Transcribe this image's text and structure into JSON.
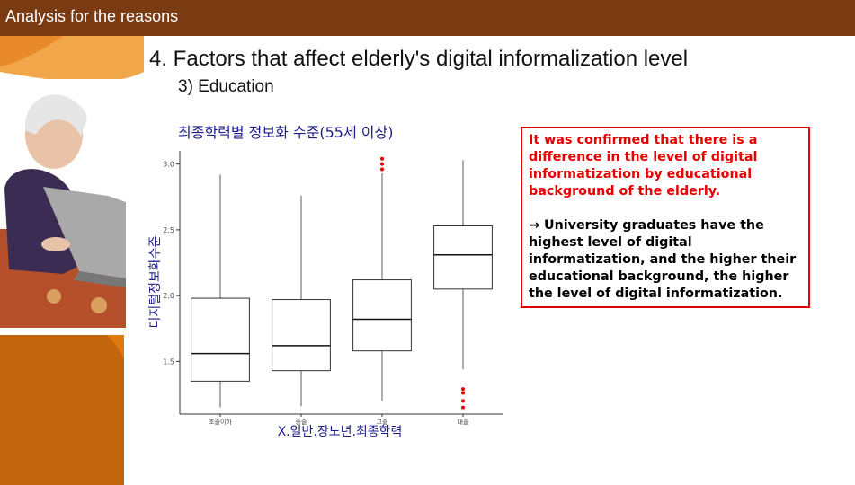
{
  "header": {
    "title": "Analysis for the reasons"
  },
  "slide": {
    "title": "4. Factors that affect elderly's digital informalization level",
    "subtitle": "3) Education"
  },
  "note": {
    "finding": "It was confirmed that there is a difference in the level of digital informatization by educational background of the elderly.",
    "detail": "→ University graduates have the highest level of digital informatization, and the higher their educational background, the higher the level of digital informatization."
  },
  "colors": {
    "header_bg": "#7a3a12",
    "accent_orange": "#e07a10",
    "chart_title": "#1a1a8c",
    "outlier": "#e60000",
    "note_border": "#e60000"
  },
  "chart_data": {
    "type": "boxplot",
    "title": "최종학력별 정보화 수준(55세 이상)",
    "xlabel": "X.일반.장노년.최종학력",
    "ylabel": "디지털정보화수준",
    "ylim": [
      1.1,
      3.1
    ],
    "yticks": [
      1.5,
      2.0,
      2.5,
      3.0
    ],
    "ytick_labels": [
      "1.5",
      "2.0",
      "2.5",
      "3.0"
    ],
    "grid": false,
    "categories": [
      "초졸이하",
      "중졸",
      "고졸",
      "대졸"
    ],
    "boxes": [
      {
        "whisker_low": 1.15,
        "q1": 1.35,
        "median": 1.56,
        "q3": 1.98,
        "whisker_high": 2.92,
        "outliers": []
      },
      {
        "whisker_low": 1.16,
        "q1": 1.43,
        "median": 1.62,
        "q3": 1.97,
        "whisker_high": 2.76,
        "outliers": []
      },
      {
        "whisker_low": 1.2,
        "q1": 1.58,
        "median": 1.82,
        "q3": 2.12,
        "whisker_high": 2.93,
        "outliers": [
          2.96,
          3.0,
          3.04
        ]
      },
      {
        "whisker_low": 1.44,
        "q1": 2.05,
        "median": 2.31,
        "q3": 2.53,
        "whisker_high": 3.03,
        "outliers": [
          1.15,
          1.2,
          1.26,
          1.29
        ]
      }
    ]
  }
}
